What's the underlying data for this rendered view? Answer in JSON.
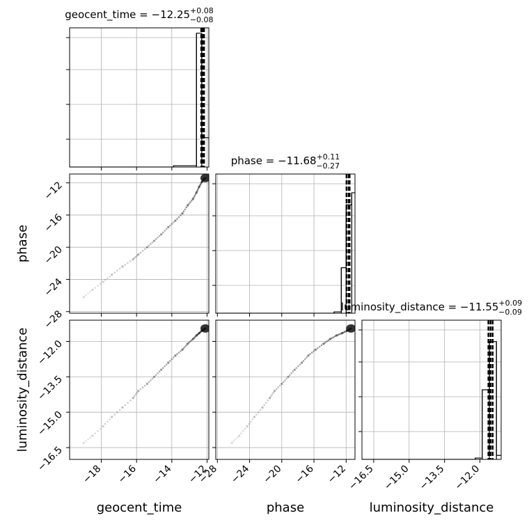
{
  "chart_data": {
    "type": "scatter",
    "subtype": "corner-plot",
    "parameters": [
      "geocent_time",
      "phase",
      "luminosity_distance"
    ],
    "grid": true,
    "titles": [
      {
        "param": "geocent_time",
        "prefix": "geocent_time = ",
        "median": "−12.25",
        "plus": "+0.08",
        "minus": "−0.08"
      },
      {
        "param": "phase",
        "prefix": "phase = ",
        "median": "−11.68",
        "plus": "+0.11",
        "minus": "−0.27"
      },
      {
        "param": "luminosity_distance",
        "prefix": "luminosity_distance = ",
        "median": "−11.55",
        "plus": "+0.09",
        "minus": "−0.09"
      }
    ],
    "axis_labels": {
      "x": [
        "geocent_time",
        "phase",
        "luminosity_distance"
      ],
      "y": [
        "phase",
        "luminosity_distance"
      ]
    },
    "ranges": {
      "geocent_time": [
        -19.8,
        -11.9
      ],
      "phase": [
        -28.2,
        -10.9
      ],
      "luminosity_distance": [
        -17.0,
        -11.1
      ]
    },
    "ticks": {
      "geocent_time": [
        -18,
        -16,
        -14,
        -12
      ],
      "phase": [
        -28,
        -24,
        -20,
        -16,
        -12
      ],
      "luminosity_distance": [
        -16.5,
        -15.0,
        -13.5,
        -12.0
      ]
    },
    "tick_labels": {
      "geocent_time": [
        "−18",
        "−16",
        "−14",
        "−12"
      ],
      "phase": [
        "−28",
        "−24",
        "−20",
        "−16",
        "−12"
      ],
      "luminosity_distance": [
        "−16.5",
        "−15.0",
        "−13.5",
        "−12.0"
      ]
    },
    "quantiles": {
      "geocent_time": [
        -12.33,
        -12.25,
        -12.17
      ],
      "phase": [
        -11.95,
        -11.68,
        -11.57
      ],
      "luminosity_distance": [
        -11.64,
        -11.55,
        -11.46
      ]
    },
    "histograms": {
      "geocent_time": {
        "edges": [
          -19.8,
          -13.9,
          -12.6,
          -12.3,
          -11.9
        ],
        "heights": [
          0.0,
          0.01,
          1.0,
          0.22
        ]
      },
      "phase": {
        "edges": [
          -28.2,
          -13.5,
          -12.6,
          -12.0,
          -11.3,
          -10.9
        ],
        "heights": [
          0.0,
          0.01,
          0.34,
          0.81,
          0.9
        ]
      },
      "luminosity_distance": {
        "edges": [
          -17.0,
          -12.2,
          -11.9,
          -11.6,
          -11.3,
          -11.1
        ],
        "heights": [
          0.0,
          0.01,
          0.52,
          0.88,
          0.03
        ]
      }
    },
    "samples": {
      "geocent_time": [
        -19.0,
        -18.5,
        -17.9,
        -17.4,
        -16.8,
        -16.2,
        -15.9,
        -15.4,
        -15.0,
        -14.6,
        -14.2,
        -13.8,
        -13.4,
        -13.1,
        -12.8,
        -12.6,
        -12.45,
        -12.3,
        -12.2,
        -12.1
      ],
      "phase": [
        -26.2,
        -25.3,
        -24.3,
        -23.4,
        -22.4,
        -21.5,
        -20.9,
        -20.0,
        -19.2,
        -18.4,
        -17.5,
        -16.7,
        -15.8,
        -14.8,
        -14.0,
        -13.2,
        -12.5,
        -11.9,
        -11.6,
        -11.4
      ],
      "luminosity_distance": [
        -16.3,
        -16.0,
        -15.6,
        -15.2,
        -14.8,
        -14.4,
        -14.1,
        -13.8,
        -13.5,
        -13.2,
        -12.9,
        -12.6,
        -12.35,
        -12.1,
        -11.9,
        -11.75,
        -11.65,
        -11.55,
        -11.5,
        -11.45
      ]
    }
  }
}
